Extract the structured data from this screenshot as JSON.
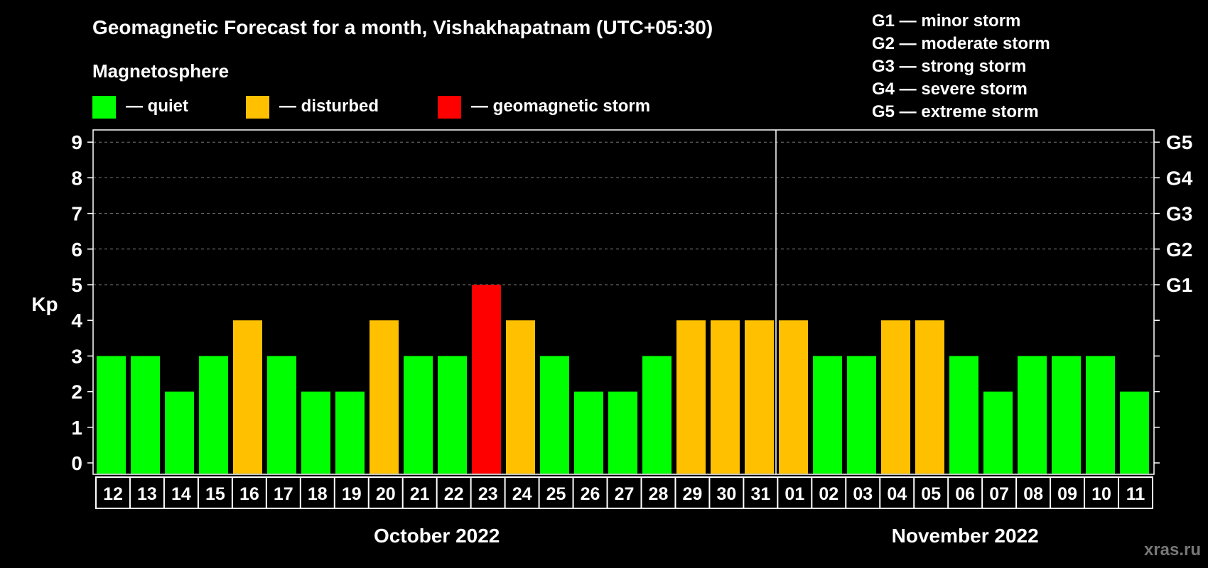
{
  "header": {
    "title": "Geomagnetic Forecast for a month, Vishakhapatnam (UTC+05:30)",
    "subtitle": "Magnetosphere"
  },
  "legend": [
    {
      "label": "— quiet",
      "color": "#00ff00"
    },
    {
      "label": "— disturbed",
      "color": "#ffc000"
    },
    {
      "label": "— geomagnetic storm",
      "color": "#ff0000"
    }
  ],
  "storm_scale": [
    "G1 — minor storm",
    "G2 — moderate storm",
    "G3 — strong storm",
    "G4 — severe storm",
    "G5 — extreme storm"
  ],
  "watermark": "xras.ru",
  "chart_data": {
    "type": "bar",
    "ylabel": "Kp",
    "ylim": [
      0,
      9
    ],
    "yticks": [
      "0",
      "1",
      "2",
      "3",
      "4",
      "5",
      "6",
      "7",
      "8",
      "9"
    ],
    "right_axis": [
      {
        "kp": 5,
        "label": "G1"
      },
      {
        "kp": 6,
        "label": "G2"
      },
      {
        "kp": 7,
        "label": "G3"
      },
      {
        "kp": 8,
        "label": "G4"
      },
      {
        "kp": 9,
        "label": "G5"
      }
    ],
    "grid": "dashed horizontal at Kp 5–9",
    "categories": [
      "12",
      "13",
      "14",
      "15",
      "16",
      "17",
      "18",
      "19",
      "20",
      "21",
      "22",
      "23",
      "24",
      "25",
      "26",
      "27",
      "28",
      "29",
      "30",
      "31",
      "01",
      "02",
      "03",
      "04",
      "05",
      "06",
      "07",
      "08",
      "09",
      "10",
      "11"
    ],
    "values": [
      3,
      3,
      2,
      3,
      4,
      3,
      2,
      2,
      4,
      3,
      3,
      5,
      4,
      3,
      2,
      2,
      3,
      4,
      4,
      4,
      4,
      3,
      3,
      4,
      4,
      3,
      2,
      3,
      3,
      3,
      2
    ],
    "color_levels": {
      "quiet": "#00ff00",
      "disturbed": "#ffc000",
      "storm": "#ff0000"
    },
    "months": [
      {
        "label": "October 2022",
        "start": 0,
        "end": 19
      },
      {
        "label": "November 2022",
        "start": 20,
        "end": 30
      }
    ]
  }
}
